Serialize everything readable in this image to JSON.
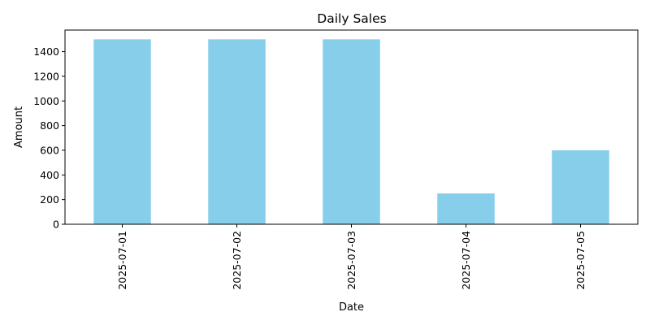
{
  "chart_data": {
    "type": "bar",
    "title": "Daily Sales",
    "xlabel": "Date",
    "ylabel": "Amount",
    "categories": [
      "2025-07-01",
      "2025-07-02",
      "2025-07-03",
      "2025-07-04",
      "2025-07-05"
    ],
    "values": [
      1500,
      1500,
      1500,
      250,
      600
    ],
    "ylim": [
      0,
      1575
    ],
    "yticks": [
      0,
      200,
      400,
      600,
      800,
      1000,
      1200,
      1400
    ],
    "bar_color": "#87ceeb",
    "grid": false,
    "legend": "none"
  }
}
